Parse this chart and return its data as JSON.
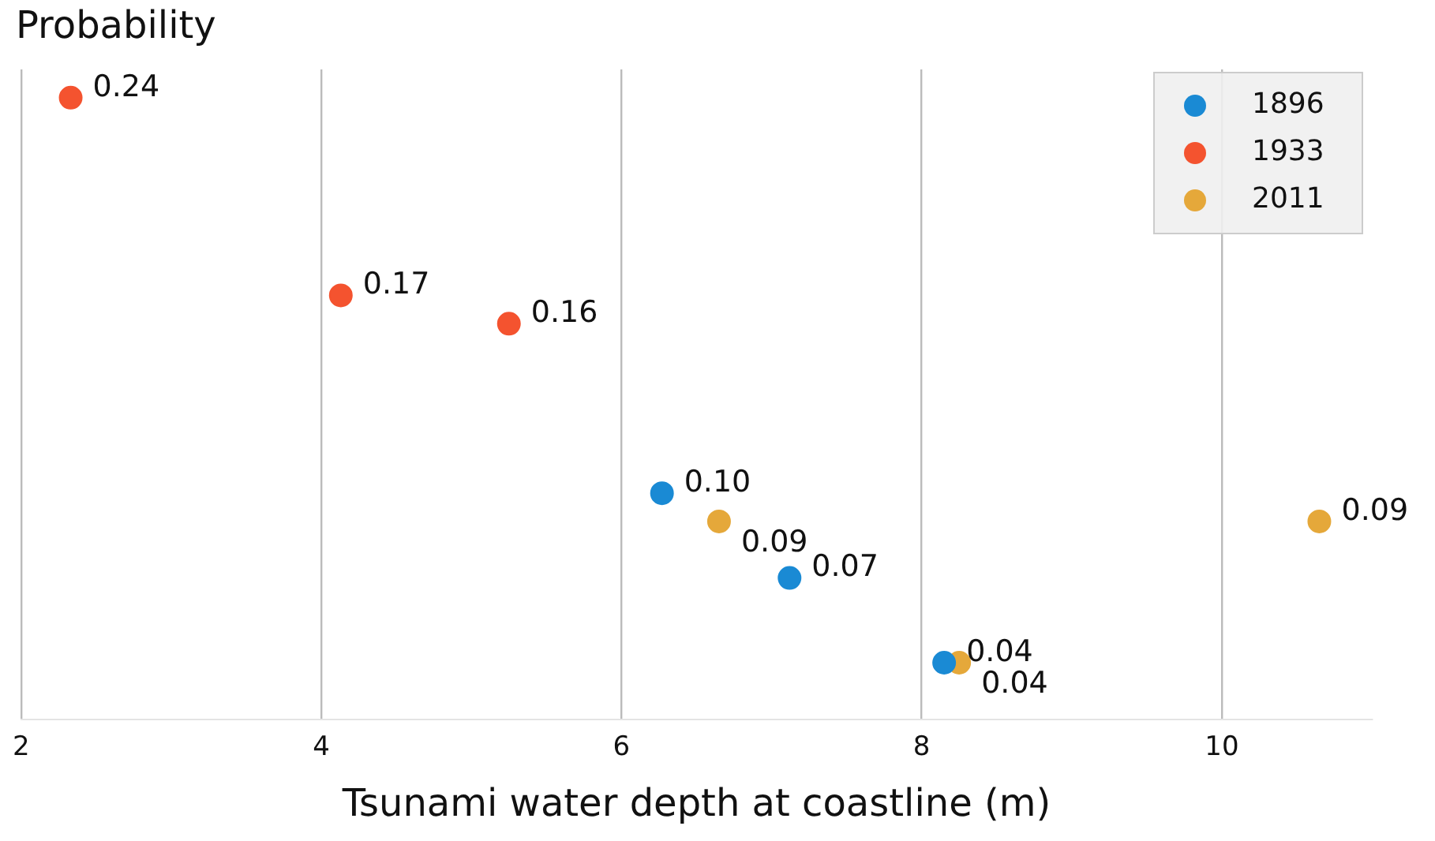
{
  "chart_data": {
    "type": "scatter",
    "ylabel": "Probability",
    "xlabel": "Tsunami water depth at coastline (m)",
    "series": [
      {
        "name": "1896",
        "color": "#1a8ad4",
        "x": [
          6.27,
          7.12,
          8.15
        ],
        "values": [
          0.1,
          0.07,
          0.04
        ],
        "value_labels": [
          "0.10",
          "0.07",
          "0.04"
        ]
      },
      {
        "name": "1933",
        "color": "#f4532f",
        "x": [
          2.33,
          4.13,
          5.25
        ],
        "values": [
          0.24,
          0.17,
          0.16
        ],
        "value_labels": [
          "0.24",
          "0.17",
          "0.16"
        ]
      },
      {
        "name": "2011",
        "color": "#e5a83a",
        "x": [
          6.65,
          8.25,
          10.65
        ],
        "values": [
          0.09,
          0.04,
          0.09
        ],
        "value_labels": [
          "0.09",
          "0.04",
          "0.09"
        ]
      }
    ],
    "xlim": [
      2,
      11
    ],
    "xticks": [
      2,
      4,
      6,
      8,
      10
    ],
    "ylim": [
      0.02,
      0.25
    ],
    "tick_labels": "x",
    "grid": "x",
    "legend": "top right",
    "marker": "circle"
  }
}
